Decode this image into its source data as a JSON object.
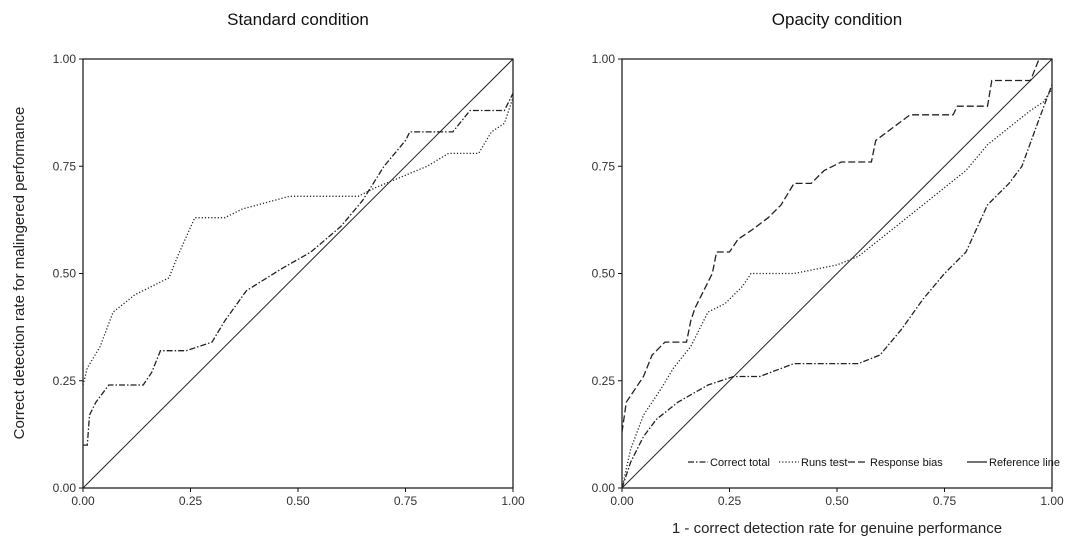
{
  "chart_data": [
    {
      "type": "line",
      "title": "Standard condition",
      "xlabel": "",
      "ylabel": "Correct detection rate for malingered performance",
      "xlim": [
        0,
        1
      ],
      "ylim": [
        0,
        1
      ],
      "x_ticks": [
        "0.00",
        "0.25",
        "0.50",
        "0.75",
        "1.00"
      ],
      "y_ticks": [
        "0.00",
        "0.25",
        "0.50",
        "0.75",
        "1.00"
      ],
      "grid": false,
      "legend": "none",
      "series": [
        {
          "name": "Correct total",
          "style": "dashdot",
          "points": [
            [
              0,
              0.1
            ],
            [
              0.01,
              0.1
            ],
            [
              0.015,
              0.17
            ],
            [
              0.03,
              0.2
            ],
            [
              0.06,
              0.24
            ],
            [
              0.14,
              0.24
            ],
            [
              0.16,
              0.27
            ],
            [
              0.18,
              0.32
            ],
            [
              0.24,
              0.32
            ],
            [
              0.3,
              0.34
            ],
            [
              0.33,
              0.39
            ],
            [
              0.38,
              0.46
            ],
            [
              0.46,
              0.51
            ],
            [
              0.53,
              0.55
            ],
            [
              0.6,
              0.61
            ],
            [
              0.65,
              0.67
            ],
            [
              0.7,
              0.75
            ],
            [
              0.75,
              0.81
            ],
            [
              0.76,
              0.83
            ],
            [
              0.86,
              0.83
            ],
            [
              0.9,
              0.88
            ],
            [
              0.98,
              0.88
            ],
            [
              1.0,
              0.92
            ]
          ]
        },
        {
          "name": "Runs test",
          "style": "dotted",
          "points": [
            [
              0,
              0.24
            ],
            [
              0.01,
              0.28
            ],
            [
              0.04,
              0.33
            ],
            [
              0.07,
              0.41
            ],
            [
              0.12,
              0.45
            ],
            [
              0.2,
              0.49
            ],
            [
              0.22,
              0.54
            ],
            [
              0.26,
              0.63
            ],
            [
              0.33,
              0.63
            ],
            [
              0.37,
              0.65
            ],
            [
              0.48,
              0.68
            ],
            [
              0.64,
              0.68
            ],
            [
              0.68,
              0.7
            ],
            [
              0.8,
              0.75
            ],
            [
              0.85,
              0.78
            ],
            [
              0.92,
              0.78
            ],
            [
              0.95,
              0.83
            ],
            [
              0.98,
              0.85
            ],
            [
              1.0,
              0.91
            ]
          ]
        },
        {
          "name": "Reference line",
          "style": "solid",
          "points": [
            [
              0,
              0
            ],
            [
              1,
              1
            ]
          ]
        }
      ]
    },
    {
      "type": "line",
      "title": "Opacity condition",
      "xlabel": "1 - correct detection rate for genuine performance",
      "ylabel": "",
      "xlim": [
        0,
        1
      ],
      "ylim": [
        0,
        1
      ],
      "x_ticks": [
        "0.00",
        "0.25",
        "0.50",
        "0.75",
        "1.00"
      ],
      "y_ticks": [
        "0.00",
        "0.25",
        "0.50",
        "0.75",
        "1.00"
      ],
      "grid": false,
      "legend": "bottom-right",
      "series": [
        {
          "name": "Correct total",
          "style": "dashdot",
          "points": [
            [
              0,
              0
            ],
            [
              0.02,
              0.06
            ],
            [
              0.05,
              0.12
            ],
            [
              0.08,
              0.16
            ],
            [
              0.13,
              0.2
            ],
            [
              0.2,
              0.24
            ],
            [
              0.26,
              0.26
            ],
            [
              0.32,
              0.26
            ],
            [
              0.4,
              0.29
            ],
            [
              0.5,
              0.29
            ],
            [
              0.55,
              0.29
            ],
            [
              0.6,
              0.31
            ],
            [
              0.65,
              0.37
            ],
            [
              0.7,
              0.44
            ],
            [
              0.75,
              0.5
            ],
            [
              0.8,
              0.55
            ],
            [
              0.85,
              0.66
            ],
            [
              0.9,
              0.71
            ],
            [
              0.93,
              0.75
            ],
            [
              0.97,
              0.86
            ],
            [
              1.0,
              0.94
            ]
          ]
        },
        {
          "name": "Runs test",
          "style": "dotted",
          "points": [
            [
              0,
              0
            ],
            [
              0.02,
              0.09
            ],
            [
              0.05,
              0.17
            ],
            [
              0.09,
              0.23
            ],
            [
              0.12,
              0.28
            ],
            [
              0.16,
              0.33
            ],
            [
              0.2,
              0.41
            ],
            [
              0.24,
              0.43
            ],
            [
              0.28,
              0.47
            ],
            [
              0.3,
              0.5
            ],
            [
              0.4,
              0.5
            ],
            [
              0.5,
              0.52
            ],
            [
              0.55,
              0.54
            ],
            [
              0.6,
              0.58
            ],
            [
              0.7,
              0.66
            ],
            [
              0.8,
              0.74
            ],
            [
              0.85,
              0.8
            ],
            [
              0.9,
              0.84
            ],
            [
              0.95,
              0.88
            ],
            [
              0.98,
              0.9
            ],
            [
              1.0,
              0.93
            ]
          ]
        },
        {
          "name": "Response bias",
          "style": "dashed",
          "points": [
            [
              0,
              0.13
            ],
            [
              0.01,
              0.2
            ],
            [
              0.03,
              0.23
            ],
            [
              0.05,
              0.26
            ],
            [
              0.07,
              0.31
            ],
            [
              0.1,
              0.34
            ],
            [
              0.15,
              0.34
            ],
            [
              0.16,
              0.39
            ],
            [
              0.17,
              0.42
            ],
            [
              0.19,
              0.46
            ],
            [
              0.21,
              0.5
            ],
            [
              0.22,
              0.55
            ],
            [
              0.25,
              0.55
            ],
            [
              0.27,
              0.58
            ],
            [
              0.3,
              0.6
            ],
            [
              0.34,
              0.63
            ],
            [
              0.37,
              0.66
            ],
            [
              0.4,
              0.71
            ],
            [
              0.44,
              0.71
            ],
            [
              0.47,
              0.74
            ],
            [
              0.51,
              0.76
            ],
            [
              0.58,
              0.76
            ],
            [
              0.59,
              0.81
            ],
            [
              0.63,
              0.84
            ],
            [
              0.67,
              0.87
            ],
            [
              0.77,
              0.87
            ],
            [
              0.78,
              0.89
            ],
            [
              0.85,
              0.89
            ],
            [
              0.86,
              0.95
            ],
            [
              0.95,
              0.95
            ],
            [
              0.97,
              1.0
            ],
            [
              1.0,
              1.0
            ]
          ]
        },
        {
          "name": "Reference line",
          "style": "solid",
          "points": [
            [
              0,
              0
            ],
            [
              1,
              1
            ]
          ]
        }
      ]
    }
  ],
  "legend": {
    "items": [
      {
        "label": "Correct total",
        "style": "dashdot"
      },
      {
        "label": "Runs test",
        "style": "dotted"
      },
      {
        "label": "Response bias",
        "style": "dashed"
      },
      {
        "label": "Reference line",
        "style": "solid"
      }
    ]
  },
  "colors": {
    "line": "#222222",
    "axis": "#111111",
    "text": "#333333"
  }
}
